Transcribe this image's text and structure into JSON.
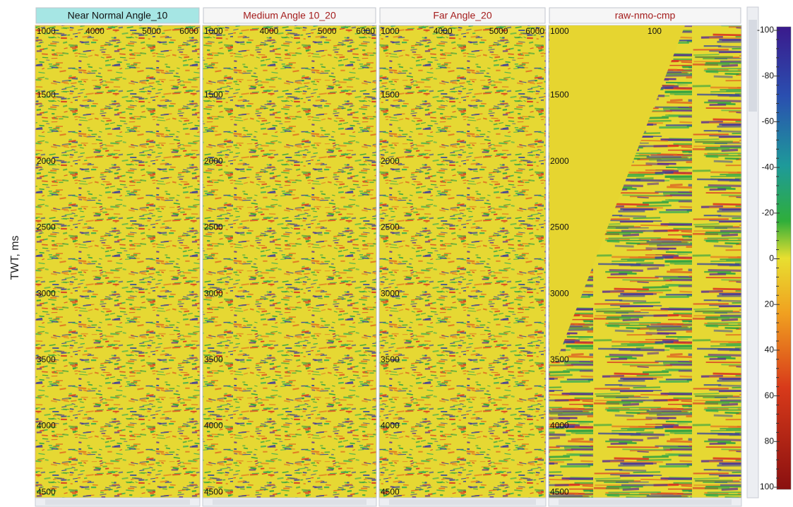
{
  "axis_label": "TWT, ms",
  "panels": [
    {
      "title": "Near Normal Angle_10",
      "x_labels": [
        "1000",
        "4000",
        "5000",
        "6000"
      ],
      "y_labels": [
        "1500",
        "2000",
        "2500",
        "3000",
        "3500",
        "4000",
        "4500"
      ]
    },
    {
      "title": "Medium Angle 10_20",
      "x_labels": [
        "1000",
        "4000",
        "5000",
        "6000"
      ],
      "y_labels": [
        "1500",
        "2000",
        "2500",
        "3000",
        "3500",
        "4000",
        "4500"
      ]
    },
    {
      "title": "Far Angle_20",
      "x_labels": [
        "1000",
        "4000",
        "5000",
        "6000"
      ],
      "y_labels": [
        "1500",
        "2000",
        "2500",
        "3000",
        "3500",
        "4000",
        "4500"
      ]
    },
    {
      "title": "raw-nmo-cmp",
      "x_labels": [
        "1000",
        "100"
      ],
      "y_labels": [
        "1500",
        "2000",
        "2500",
        "3000",
        "3500",
        "4000",
        "4500"
      ]
    }
  ],
  "colorbar": {
    "ticks": [
      -100,
      -80,
      -60,
      -40,
      -20,
      0,
      20,
      40,
      60,
      80,
      100
    ]
  }
}
